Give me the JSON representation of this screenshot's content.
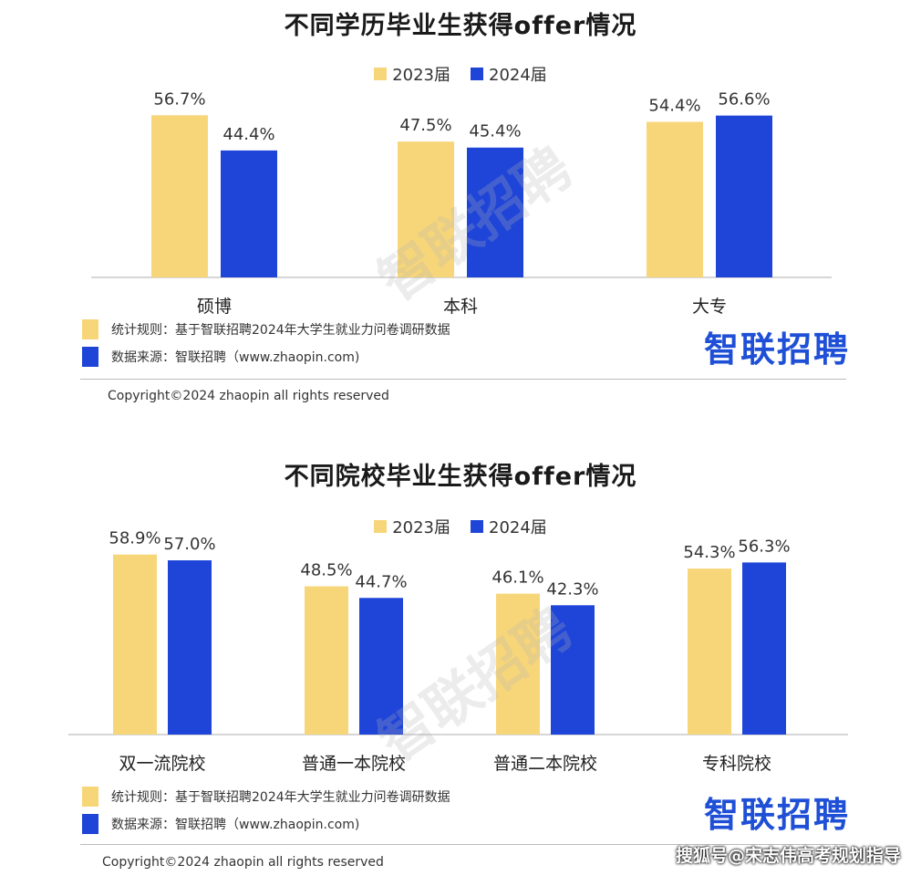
{
  "colors": {
    "y2023": "#f7d67a",
    "y2024": "#1f45d8",
    "brand": "#1e4fd6"
  },
  "charts": [
    {
      "title": "不同学历毕业生获得offer情况",
      "legend": [
        "2023届",
        "2024届"
      ],
      "footnote_rule": "统计规则：基于智联招聘2024年大学生就业力问卷调研数据",
      "footnote_source": "数据来源：智联招聘（www.zhaopin.com)",
      "logo": "智联招聘",
      "watermark": "智联招聘",
      "copyright": "Copyright©2024 zhaopin all rights reserved"
    },
    {
      "title": "不同院校毕业生获得offer情况",
      "legend": [
        "2023届",
        "2024届"
      ],
      "footnote_rule": "统计规则：基于智联招聘2024年大学生就业力问卷调研数据",
      "footnote_source": "数据来源：智联招聘（www.zhaopin.com)",
      "logo": "智联招聘",
      "watermark": "智联招聘",
      "copyright": "Copyright©2024 zhaopin all rights reserved"
    }
  ],
  "chart_data": [
    {
      "type": "bar",
      "title": "不同学历毕业生获得offer情况",
      "categories": [
        "硕博",
        "本科",
        "大专"
      ],
      "series": [
        {
          "name": "2023届",
          "values": [
            56.7,
            47.5,
            54.4
          ],
          "labels": [
            "56.7%",
            "47.5%",
            "54.4%"
          ]
        },
        {
          "name": "2024届",
          "values": [
            44.4,
            45.4,
            56.6
          ],
          "labels": [
            "44.4%",
            "45.4%",
            "56.6%"
          ]
        }
      ],
      "ylim": [
        0,
        60
      ],
      "grid": false,
      "legend_position": "top-center"
    },
    {
      "type": "bar",
      "title": "不同院校毕业生获得offer情况",
      "categories": [
        "双一流院校",
        "普通一本院校",
        "普通二本院校",
        "专科院校"
      ],
      "series": [
        {
          "name": "2023届",
          "values": [
            58.9,
            48.5,
            46.1,
            54.3
          ],
          "labels": [
            "58.9%",
            "48.5%",
            "46.1%",
            "54.3%"
          ]
        },
        {
          "name": "2024届",
          "values": [
            57.0,
            44.7,
            42.3,
            56.3
          ],
          "labels": [
            "57.0%",
            "44.7%",
            "42.3%",
            "56.3%"
          ]
        }
      ],
      "ylim": [
        0,
        60
      ],
      "grid": false,
      "legend_position": "top-center"
    }
  ],
  "credit": "搜狐号@宋志伟高考规划指导"
}
